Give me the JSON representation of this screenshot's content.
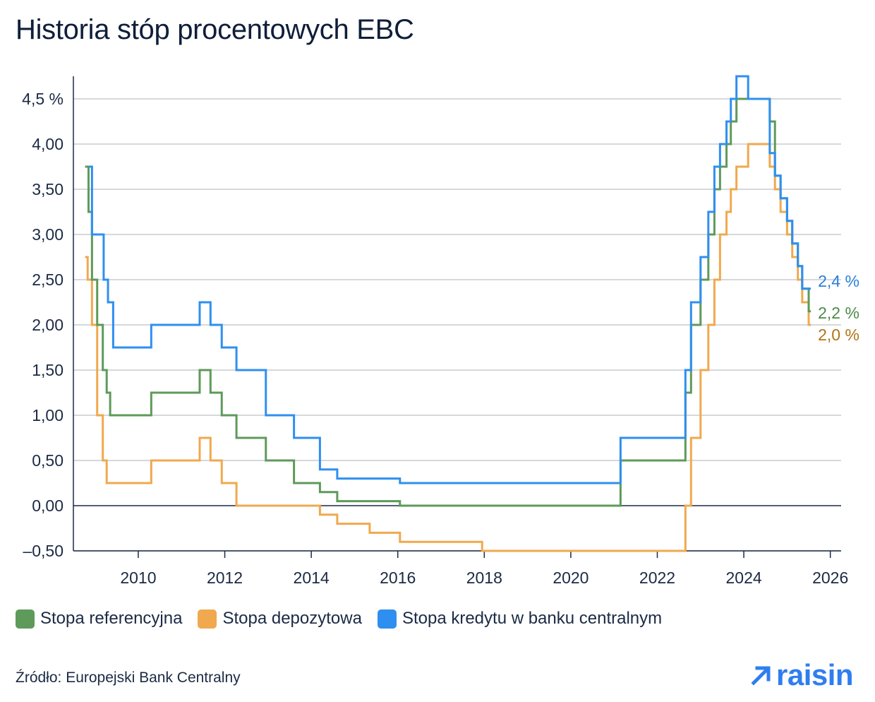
{
  "title": "Historia stóp procentowych EBC",
  "source": "Źródło: Europejski Bank Centralny",
  "logo": {
    "text": "raisin",
    "icon": "arrow-up-right-icon",
    "color": "#2f7ef0"
  },
  "chart_data": {
    "type": "line",
    "step": true,
    "title": "Historia stóp procentowych EBC",
    "xlabel": "",
    "ylabel": "",
    "xlim": [
      2008.5,
      2026.25
    ],
    "ylim": [
      -0.5,
      4.75
    ],
    "x_ticks": [
      2010,
      2012,
      2014,
      2016,
      2018,
      2020,
      2022,
      2024,
      2026
    ],
    "x_tick_labels": [
      "2010",
      "2012",
      "2014",
      "2016",
      "2018",
      "2020",
      "2022",
      "2024",
      "2026"
    ],
    "y_ticks": [
      -0.5,
      0,
      0.5,
      1,
      1.5,
      2,
      2.5,
      3,
      3.5,
      4,
      4.5
    ],
    "y_tick_labels": [
      "–0,50",
      "0,00",
      "0,50",
      "1,00",
      "1,50",
      "2,00",
      "2,50",
      "3,00",
      "3,50",
      "4,00",
      "4,5 %"
    ],
    "grid": "horizontal",
    "legend_position": "bottom",
    "series": [
      {
        "name": "Stopa referencyjna",
        "color": "#5e9a5a",
        "end_label": "2,2 %",
        "points": [
          [
            2008.77,
            3.75
          ],
          [
            2008.85,
            3.25
          ],
          [
            2008.93,
            2.5
          ],
          [
            2009.05,
            2.0
          ],
          [
            2009.18,
            1.5
          ],
          [
            2009.27,
            1.25
          ],
          [
            2009.35,
            1.0
          ],
          [
            2010.3,
            1.25
          ],
          [
            2011.42,
            1.5
          ],
          [
            2011.67,
            1.25
          ],
          [
            2011.93,
            1.0
          ],
          [
            2012.27,
            0.75
          ],
          [
            2012.95,
            0.5
          ],
          [
            2013.6,
            0.25
          ],
          [
            2014.2,
            0.15
          ],
          [
            2014.6,
            0.05
          ],
          [
            2016.05,
            0.0
          ],
          [
            2021.15,
            0.5
          ],
          [
            2022.65,
            1.25
          ],
          [
            2022.78,
            2.0
          ],
          [
            2023.0,
            2.5
          ],
          [
            2023.18,
            3.0
          ],
          [
            2023.32,
            3.5
          ],
          [
            2023.45,
            3.75
          ],
          [
            2023.6,
            4.0
          ],
          [
            2023.7,
            4.25
          ],
          [
            2023.83,
            4.5
          ],
          [
            2024.6,
            4.25
          ],
          [
            2024.72,
            3.65
          ],
          [
            2024.85,
            3.4
          ],
          [
            2025.0,
            3.15
          ],
          [
            2025.12,
            2.9
          ],
          [
            2025.25,
            2.65
          ],
          [
            2025.35,
            2.4
          ],
          [
            2025.5,
            2.15
          ],
          [
            2025.55,
            2.15
          ]
        ]
      },
      {
        "name": "Stopa depozytowa",
        "color": "#f0a94e",
        "end_label": "2,0 %",
        "points": [
          [
            2008.77,
            2.75
          ],
          [
            2008.83,
            2.5
          ],
          [
            2008.93,
            2.0
          ],
          [
            2009.05,
            1.0
          ],
          [
            2009.18,
            0.5
          ],
          [
            2009.27,
            0.25
          ],
          [
            2010.3,
            0.5
          ],
          [
            2011.42,
            0.75
          ],
          [
            2011.67,
            0.5
          ],
          [
            2011.93,
            0.25
          ],
          [
            2012.27,
            0.0
          ],
          [
            2014.2,
            -0.1
          ],
          [
            2014.6,
            -0.2
          ],
          [
            2015.35,
            -0.3
          ],
          [
            2016.05,
            -0.4
          ],
          [
            2017.95,
            -0.5
          ],
          [
            2021.15,
            -0.5
          ],
          [
            2022.65,
            0.0
          ],
          [
            2022.78,
            0.75
          ],
          [
            2023.0,
            1.5
          ],
          [
            2023.18,
            2.0
          ],
          [
            2023.32,
            2.5
          ],
          [
            2023.45,
            3.0
          ],
          [
            2023.6,
            3.25
          ],
          [
            2023.7,
            3.5
          ],
          [
            2023.83,
            3.75
          ],
          [
            2024.1,
            4.0
          ],
          [
            2024.6,
            3.75
          ],
          [
            2024.72,
            3.5
          ],
          [
            2024.85,
            3.25
          ],
          [
            2025.0,
            3.0
          ],
          [
            2025.12,
            2.75
          ],
          [
            2025.25,
            2.5
          ],
          [
            2025.35,
            2.25
          ],
          [
            2025.5,
            2.0
          ],
          [
            2025.55,
            2.0
          ]
        ]
      },
      {
        "name": "Stopa kredytu w banku centralnym",
        "color": "#2f8ff0",
        "end_label": "2,4 %",
        "points": [
          [
            2008.85,
            3.75
          ],
          [
            2008.93,
            3.0
          ],
          [
            2009.2,
            2.5
          ],
          [
            2009.3,
            2.25
          ],
          [
            2009.42,
            1.75
          ],
          [
            2010.3,
            2.0
          ],
          [
            2011.42,
            2.25
          ],
          [
            2011.67,
            2.0
          ],
          [
            2011.93,
            1.75
          ],
          [
            2012.27,
            1.5
          ],
          [
            2012.95,
            1.0
          ],
          [
            2013.6,
            0.75
          ],
          [
            2014.2,
            0.4
          ],
          [
            2014.6,
            0.3
          ],
          [
            2016.05,
            0.25
          ],
          [
            2021.15,
            0.75
          ],
          [
            2022.65,
            1.5
          ],
          [
            2022.78,
            2.25
          ],
          [
            2023.0,
            2.75
          ],
          [
            2023.18,
            3.25
          ],
          [
            2023.32,
            3.75
          ],
          [
            2023.45,
            4.0
          ],
          [
            2023.6,
            4.25
          ],
          [
            2023.7,
            4.5
          ],
          [
            2023.83,
            4.75
          ],
          [
            2024.1,
            4.5
          ],
          [
            2024.6,
            3.9
          ],
          [
            2024.72,
            3.65
          ],
          [
            2024.85,
            3.4
          ],
          [
            2025.0,
            3.15
          ],
          [
            2025.12,
            2.9
          ],
          [
            2025.25,
            2.65
          ],
          [
            2025.35,
            2.4
          ],
          [
            2025.55,
            2.4
          ]
        ]
      }
    ]
  }
}
